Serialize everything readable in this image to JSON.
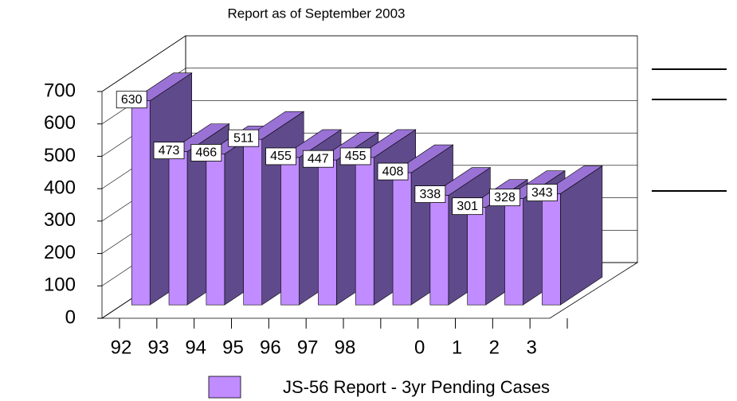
{
  "chart_data": {
    "type": "bar3d",
    "title": "Report as of September 2003",
    "categories": [
      "92",
      "93",
      "94",
      "95",
      "96",
      "97",
      "98",
      null,
      "0",
      "1",
      "2",
      "3"
    ],
    "series": [
      {
        "name": "JS-56 Report - 3yr Pending Cases",
        "color": "#c08cff",
        "values": [
          630,
          473,
          466,
          511,
          455,
          447,
          455,
          408,
          338,
          301,
          328,
          343
        ]
      }
    ],
    "ylim": [
      0,
      700
    ],
    "yticks": [
      0,
      100,
      200,
      300,
      400,
      500,
      600,
      700
    ],
    "grid": true
  }
}
